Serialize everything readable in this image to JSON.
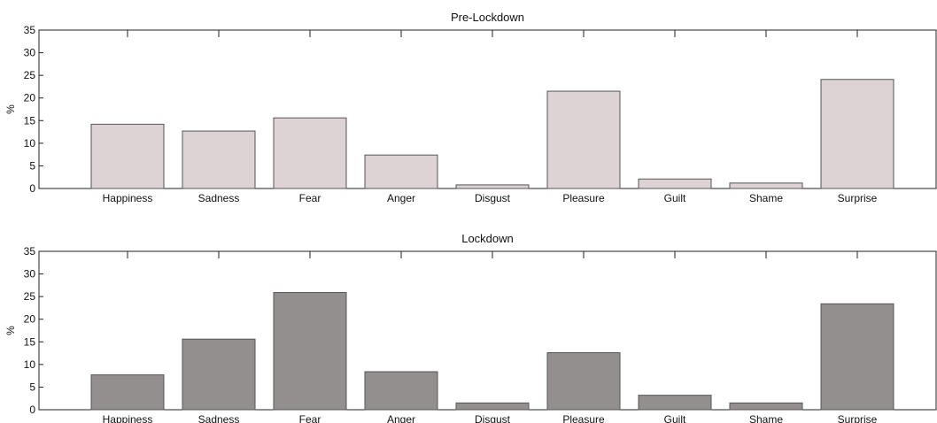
{
  "chart_data": [
    {
      "type": "bar",
      "title": "Pre-Lockdown",
      "ylabel": "%",
      "xlabel": "",
      "ylim": [
        0,
        35
      ],
      "yticks": [
        0,
        5,
        10,
        15,
        20,
        25,
        30,
        35
      ],
      "grid": false,
      "categories": [
        "Happiness",
        "Sadness",
        "Fear",
        "Anger",
        "Disgust",
        "Pleasure",
        "Guilt",
        "Shame",
        "Surprise"
      ],
      "values": [
        14.2,
        12.7,
        15.6,
        7.4,
        0.8,
        21.5,
        2.1,
        1.2,
        24.1
      ],
      "bar_color": "#ddd3d4"
    },
    {
      "type": "bar",
      "title": "Lockdown",
      "ylabel": "%",
      "xlabel": "",
      "ylim": [
        0,
        35
      ],
      "yticks": [
        0,
        5,
        10,
        15,
        20,
        25,
        30,
        35
      ],
      "grid": false,
      "categories": [
        "Happiness",
        "Sadness",
        "Fear",
        "Anger",
        "Disgust",
        "Pleasure",
        "Guilt",
        "Shame",
        "Surprise"
      ],
      "values": [
        7.7,
        15.6,
        25.9,
        8.4,
        1.5,
        12.6,
        3.2,
        1.5,
        23.4
      ],
      "bar_color": "#938f8e"
    }
  ]
}
